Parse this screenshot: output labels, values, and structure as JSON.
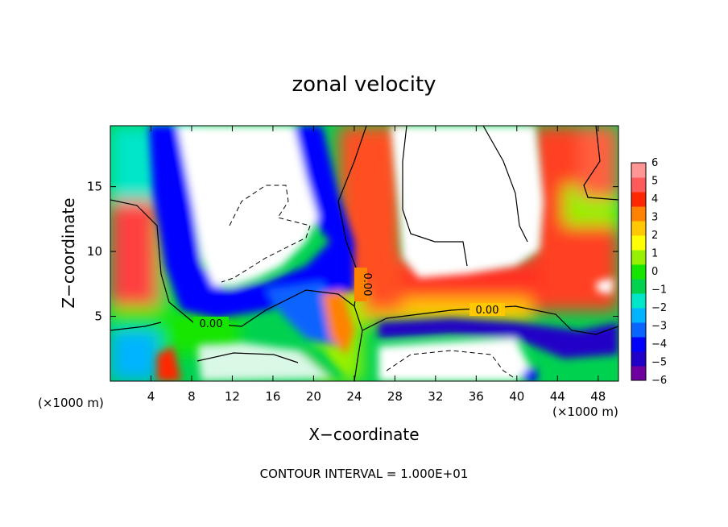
{
  "chart_data": {
    "type": "heatmap",
    "title": "zonal velocity",
    "xlabel": "X−coordinate",
    "ylabel": "Z−coordinate",
    "x_unit": "(×1000 m)",
    "y_unit": "(×1000 m)",
    "xlim": [
      0,
      50
    ],
    "ylim": [
      0,
      19.7
    ],
    "x_ticks": [
      4,
      8,
      12,
      16,
      20,
      24,
      28,
      32,
      36,
      40,
      44,
      48
    ],
    "y_ticks": [
      5,
      10,
      15
    ],
    "x_tick_labels": [
      "4",
      "8",
      "12",
      "16",
      "20",
      "24",
      "28",
      "32",
      "36",
      "40",
      "44",
      "48"
    ],
    "y_tick_labels": [
      "5",
      "10",
      "15"
    ],
    "colorbar": {
      "min": -6,
      "max": 6,
      "tick_values": [
        6,
        5,
        4,
        3,
        2,
        1,
        0,
        -1,
        -2,
        -3,
        -4,
        -5,
        -6
      ],
      "tick_labels": [
        "6",
        "5",
        "4",
        "3",
        "2",
        "1",
        "0",
        "−1",
        "−2",
        "−3",
        "−4",
        "−5",
        "−6"
      ],
      "colors": [
        "#6e00a0",
        "#2000c8",
        "#0000ff",
        "#0a64ff",
        "#00b4ff",
        "#00e6c8",
        "#00d250",
        "#14e600",
        "#96f000",
        "#ffff00",
        "#ffc800",
        "#ff8200",
        "#ff2800",
        "#ff5a5a",
        "#ff9696"
      ]
    },
    "contour_labels": [
      "0.00",
      "0.00",
      "0.00"
    ],
    "annotation": "CONTOUR INTERVAL = 1.000E+01",
    "legend_placement": "right",
    "grid": false
  }
}
